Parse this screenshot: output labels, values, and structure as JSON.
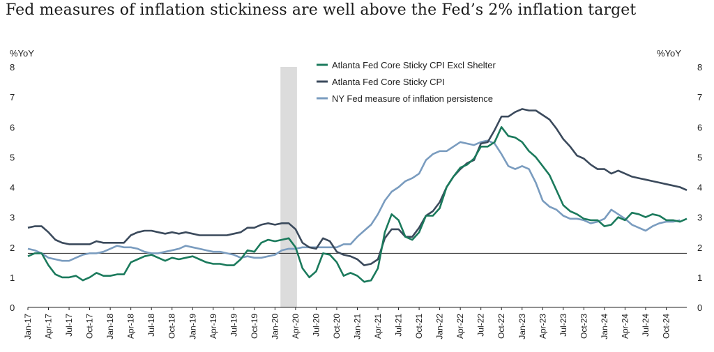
{
  "page": {
    "title": "Fed measures of inflation stickiness are well above the Fed’s 2% inflation target"
  },
  "chart_data": {
    "type": "line",
    "title": "Fed measures of inflation stickiness are well above the Fed’s 2% inflation target",
    "ylabel_left": "%YoY",
    "ylabel_right": "%YoY",
    "ylim": [
      0,
      8
    ],
    "yticks": [
      0,
      1,
      2,
      3,
      4,
      5,
      6,
      7,
      8
    ],
    "start_month": "Jan-17",
    "reference_line": 1.8,
    "shaded_region": {
      "from": "Feb-20",
      "to": "Apr-20"
    },
    "legend_position": "top-center",
    "grid": false,
    "xtick_labels": [
      "Jan-17",
      "Apr-17",
      "Jul-17",
      "Oct-17",
      "Jan-18",
      "Apr-18",
      "Jul-18",
      "Oct-18",
      "Jan-19",
      "Apr-19",
      "Jul-19",
      "Oct-19",
      "Jan-20",
      "Apr-20",
      "Jul-20",
      "Oct-20",
      "Jan-21",
      "Apr-21",
      "Jul-21",
      "Oct-21",
      "Jan-22",
      "Apr-22",
      "Jul-22",
      "Oct-22",
      "Jan-23",
      "Apr-23",
      "Jul-23",
      "Oct-23",
      "Jan-24",
      "Apr-24",
      "Jul-24",
      "Oct-24"
    ],
    "series": [
      {
        "name": "Atlanta Fed Core Sticky CPI Excl Shelter",
        "color": "#1b7a5c",
        "values": [
          1.7,
          1.8,
          1.8,
          1.4,
          1.1,
          1.0,
          1.0,
          1.05,
          0.9,
          1.0,
          1.15,
          1.05,
          1.05,
          1.1,
          1.1,
          1.5,
          1.6,
          1.7,
          1.75,
          1.65,
          1.55,
          1.65,
          1.6,
          1.65,
          1.7,
          1.6,
          1.5,
          1.45,
          1.45,
          1.4,
          1.4,
          1.6,
          1.9,
          1.85,
          2.15,
          2.25,
          2.2,
          2.25,
          2.3,
          2.0,
          1.3,
          1.0,
          1.2,
          1.8,
          1.75,
          1.5,
          1.05,
          1.15,
          1.05,
          0.85,
          0.9,
          1.3,
          2.5,
          3.1,
          2.9,
          2.35,
          2.25,
          2.5,
          3.05,
          3.05,
          3.3,
          4.0,
          4.35,
          4.65,
          4.75,
          4.95,
          5.35,
          5.35,
          5.5,
          6.0,
          5.7,
          5.65,
          5.5,
          5.2,
          5.0,
          4.7,
          4.4,
          3.9,
          3.4,
          3.2,
          3.1,
          2.95,
          2.9,
          2.9,
          2.7,
          2.75,
          3.0,
          2.9,
          3.15,
          3.1,
          3.0,
          3.1,
          3.05,
          2.9,
          2.9,
          2.85,
          2.95
        ]
      },
      {
        "name": "Atlanta Fed Core Sticky CPI",
        "color": "#3b4a5c",
        "values": [
          2.65,
          2.7,
          2.7,
          2.5,
          2.25,
          2.15,
          2.1,
          2.1,
          2.1,
          2.1,
          2.2,
          2.15,
          2.15,
          2.15,
          2.15,
          2.4,
          2.5,
          2.55,
          2.55,
          2.5,
          2.45,
          2.5,
          2.45,
          2.5,
          2.45,
          2.4,
          2.4,
          2.4,
          2.4,
          2.4,
          2.45,
          2.5,
          2.65,
          2.65,
          2.75,
          2.8,
          2.75,
          2.8,
          2.8,
          2.6,
          2.15,
          2.0,
          1.95,
          2.3,
          2.2,
          1.85,
          1.75,
          1.7,
          1.6,
          1.4,
          1.45,
          1.6,
          2.3,
          2.6,
          2.6,
          2.35,
          2.35,
          2.65,
          3.05,
          3.2,
          3.5,
          4.0,
          4.35,
          4.6,
          4.8,
          4.9,
          5.45,
          5.5,
          5.9,
          6.35,
          6.35,
          6.5,
          6.6,
          6.55,
          6.55,
          6.4,
          6.25,
          5.95,
          5.6,
          5.35,
          5.05,
          4.95,
          4.75,
          4.6,
          4.6,
          4.45,
          4.55,
          4.45,
          4.35,
          4.3,
          4.25,
          4.2,
          4.15,
          4.1,
          4.05,
          4.0,
          3.9
        ]
      },
      {
        "name": "NY Fed measure of inflation persistence",
        "color": "#7a9cbf",
        "values": [
          1.95,
          1.9,
          1.8,
          1.65,
          1.6,
          1.55,
          1.55,
          1.65,
          1.75,
          1.8,
          1.8,
          1.85,
          1.95,
          2.05,
          2.0,
          2.0,
          1.95,
          1.85,
          1.8,
          1.8,
          1.85,
          1.9,
          1.95,
          2.05,
          2.0,
          1.95,
          1.9,
          1.85,
          1.85,
          1.8,
          1.75,
          1.65,
          1.7,
          1.65,
          1.65,
          1.7,
          1.75,
          1.9,
          1.95,
          1.95,
          2.0,
          2.0,
          2.0,
          2.0,
          2.0,
          2.0,
          2.1,
          2.1,
          2.35,
          2.55,
          2.75,
          3.1,
          3.55,
          3.85,
          4.0,
          4.2,
          4.3,
          4.45,
          4.9,
          5.1,
          5.2,
          5.2,
          5.35,
          5.5,
          5.45,
          5.4,
          5.5,
          5.55,
          5.45,
          5.1,
          4.7,
          4.6,
          4.7,
          4.6,
          4.15,
          3.55,
          3.35,
          3.25,
          3.05,
          2.95,
          2.95,
          2.9,
          2.8,
          2.85,
          2.95,
          3.25,
          3.1,
          2.95,
          2.75,
          2.65,
          2.55,
          2.7,
          2.8,
          2.85,
          2.85,
          2.9
        ]
      }
    ]
  }
}
